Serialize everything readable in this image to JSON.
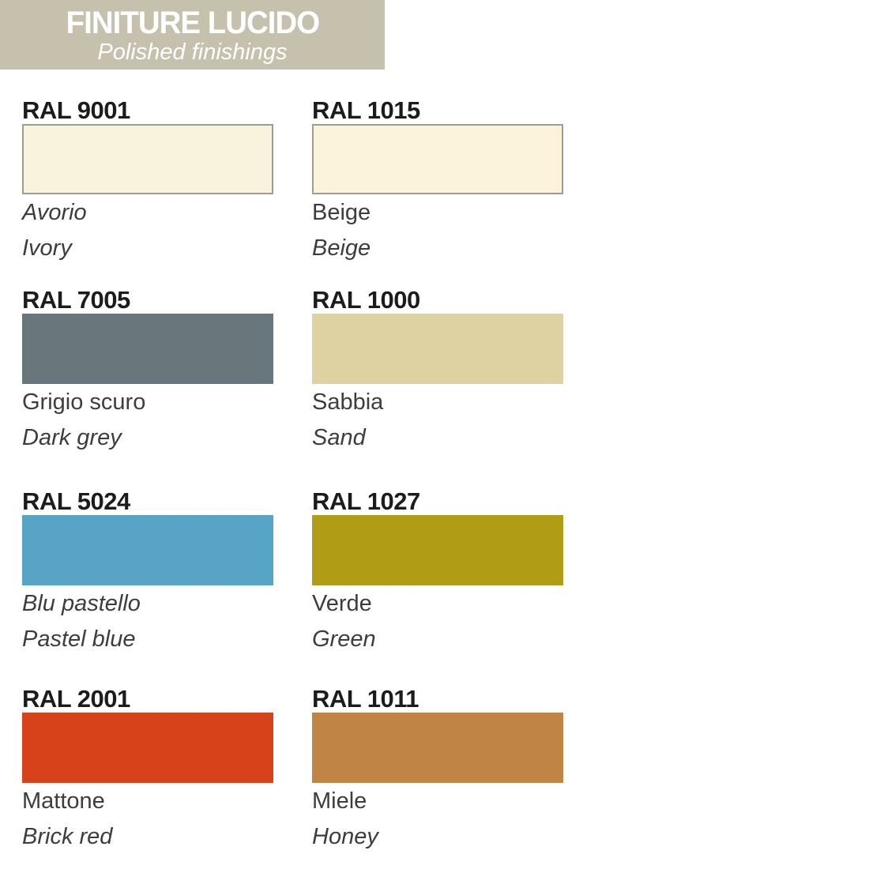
{
  "header": {
    "title": "FINITURE LUCIDO",
    "subtitle": "Polished finishings",
    "bg_color": "#c6c1ac",
    "text_color": "#ffffff"
  },
  "swatches": [
    {
      "code": "RAL 9001",
      "name_it": "Avorio",
      "name_en": "Ivory",
      "color": "#f9f2dd",
      "bordered": true,
      "it_italic": true
    },
    {
      "code": "RAL 1015",
      "name_it": "Beige",
      "name_en": "Beige",
      "color": "#fbf3da",
      "bordered": true,
      "it_italic": false
    },
    {
      "code": "RAL 7005",
      "name_it": "Grigio scuro",
      "name_en": "Dark grey",
      "color": "#66767a",
      "bordered": false,
      "it_italic": false
    },
    {
      "code": "RAL 1000",
      "name_it": "Sabbia",
      "name_en": "Sand",
      "color": "#ded2a2",
      "bordered": false,
      "it_italic": false
    },
    {
      "code": "RAL 5024",
      "name_it": "Blu pastello",
      "name_en": "Pastel blue",
      "color": "#57a4c6",
      "bordered": false,
      "it_italic": true
    },
    {
      "code": "RAL 1027",
      "name_it": "Verde",
      "name_en": "Green",
      "color": "#b09d15",
      "bordered": false,
      "it_italic": false
    },
    {
      "code": "RAL 2001",
      "name_it": "Mattone",
      "name_en": "Brick red",
      "color": "#d8421b",
      "bordered": false,
      "it_italic": false
    },
    {
      "code": "RAL 1011",
      "name_it": "Miele",
      "name_en": "Honey",
      "color": "#c08443",
      "bordered": false,
      "it_italic": false
    }
  ]
}
